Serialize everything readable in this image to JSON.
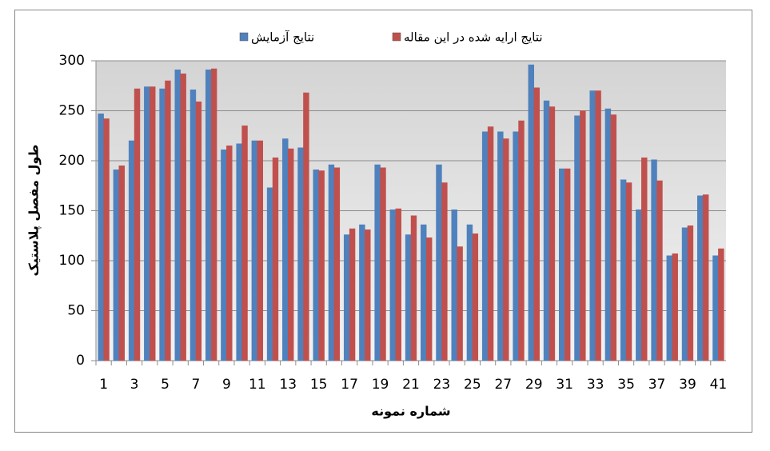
{
  "chart_data": {
    "type": "bar",
    "x_label": "شماره نمونه",
    "y_label": "طول مفصل پلاستیک",
    "categories": [
      1,
      null,
      3,
      null,
      5,
      null,
      7,
      null,
      9,
      null,
      11,
      null,
      13,
      null,
      15,
      null,
      17,
      null,
      19,
      null,
      21,
      null,
      23,
      null,
      25,
      null,
      27,
      null,
      29,
      null,
      31,
      null,
      33,
      null,
      35,
      null,
      37,
      null,
      39,
      null,
      41
    ],
    "series": [
      {
        "name": "نتایج آزمایش",
        "color": "#4f81bd",
        "values": [
          247,
          191,
          220,
          274,
          272,
          291,
          271,
          291,
          211,
          217,
          220,
          173,
          222,
          213,
          191,
          196,
          126,
          136,
          196,
          151,
          126,
          136,
          196,
          151,
          136,
          229,
          229,
          229,
          296,
          260,
          192,
          245,
          270,
          252,
          181,
          151,
          201,
          105,
          133,
          165,
          105
        ]
      },
      {
        "name": "نتایج ارایه شده در این مقاله",
        "color": "#c0504d",
        "values": [
          242,
          195,
          272,
          274,
          280,
          287,
          259,
          292,
          215,
          235,
          220,
          203,
          212,
          268,
          190,
          193,
          132,
          131,
          193,
          152,
          145,
          123,
          178,
          114,
          127,
          234,
          222,
          240,
          273,
          254,
          192,
          250,
          270,
          246,
          178,
          203,
          180,
          107,
          135,
          166,
          112
        ]
      }
    ],
    "ylim": [
      0,
      300
    ],
    "yticks": [
      0,
      50,
      100,
      150,
      200,
      250,
      300
    ],
    "grid": true
  }
}
